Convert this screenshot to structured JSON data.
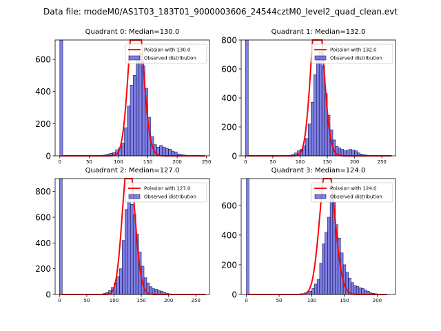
{
  "figure_title": "Data file: modeM0/AS1T03_183T01_9000003606_24544cztM0_level2_quad_clean.evt",
  "chart_data": [
    {
      "type": "bar",
      "title": "Quadrant 0: Median=130.0",
      "xlim": [
        -8,
        255
      ],
      "ylim": [
        0,
        720
      ],
      "xticks": [
        0,
        50,
        100,
        150,
        200,
        250
      ],
      "yticks": [
        0,
        200,
        400,
        600
      ],
      "bin_width": 5,
      "bins": [
        [
          0,
          720
        ],
        [
          70,
          4
        ],
        [
          75,
          6
        ],
        [
          80,
          12
        ],
        [
          85,
          16
        ],
        [
          90,
          20
        ],
        [
          95,
          38
        ],
        [
          100,
          50
        ],
        [
          105,
          80
        ],
        [
          110,
          175
        ],
        [
          115,
          310
        ],
        [
          120,
          440
        ],
        [
          125,
          500
        ],
        [
          130,
          590
        ],
        [
          135,
          640
        ],
        [
          140,
          560
        ],
        [
          145,
          420
        ],
        [
          150,
          240
        ],
        [
          155,
          120
        ],
        [
          160,
          70
        ],
        [
          165,
          55
        ],
        [
          170,
          65
        ],
        [
          175,
          55
        ],
        [
          180,
          45
        ],
        [
          185,
          42
        ],
        [
          190,
          30
        ],
        [
          195,
          25
        ],
        [
          200,
          12
        ],
        [
          205,
          8
        ],
        [
          210,
          5
        ],
        [
          215,
          3
        ]
      ],
      "fit": {
        "label": "Poission with 130.0",
        "mu": 130.0,
        "total": 5900,
        "x_range": [
          2,
          248
        ]
      },
      "legend": [
        "Poission with 130.0",
        "Observed distribution"
      ]
    },
    {
      "type": "bar",
      "title": "Quadrant 1: Median=132.0",
      "xlim": [
        -8,
        275
      ],
      "ylim": [
        0,
        800
      ],
      "xticks": [
        0,
        50,
        100,
        150,
        200,
        250
      ],
      "yticks": [
        0,
        200,
        400,
        600,
        800
      ],
      "bin_width": 5,
      "bins": [
        [
          0,
          800
        ],
        [
          80,
          5
        ],
        [
          85,
          10
        ],
        [
          90,
          20
        ],
        [
          95,
          35
        ],
        [
          100,
          45
        ],
        [
          105,
          70
        ],
        [
          110,
          120
        ],
        [
          115,
          220
        ],
        [
          120,
          370
        ],
        [
          125,
          560
        ],
        [
          130,
          680
        ],
        [
          135,
          720
        ],
        [
          140,
          620
        ],
        [
          145,
          430
        ],
        [
          150,
          280
        ],
        [
          155,
          180
        ],
        [
          160,
          110
        ],
        [
          165,
          65
        ],
        [
          170,
          55
        ],
        [
          175,
          45
        ],
        [
          180,
          35
        ],
        [
          185,
          40
        ],
        [
          190,
          45
        ],
        [
          195,
          40
        ],
        [
          200,
          35
        ],
        [
          205,
          20
        ],
        [
          210,
          12
        ],
        [
          215,
          8
        ],
        [
          220,
          5
        ],
        [
          225,
          3
        ]
      ],
      "fit": {
        "label": "Poission with 132.0",
        "mu": 132.0,
        "total": 6100,
        "x_range": [
          2,
          268
        ]
      },
      "legend": [
        "Poission with 132.0",
        "Observed distribution"
      ]
    },
    {
      "type": "bar",
      "title": "Quadrant 2: Median=127.0",
      "xlim": [
        -8,
        275
      ],
      "ylim": [
        0,
        900
      ],
      "xticks": [
        0,
        50,
        100,
        150,
        200,
        250
      ],
      "yticks": [
        0,
        200,
        400,
        600,
        800
      ],
      "bin_width": 5,
      "bins": [
        [
          0,
          900
        ],
        [
          75,
          4
        ],
        [
          80,
          8
        ],
        [
          85,
          15
        ],
        [
          90,
          30
        ],
        [
          95,
          55
        ],
        [
          100,
          90
        ],
        [
          105,
          140
        ],
        [
          110,
          200
        ],
        [
          115,
          420
        ],
        [
          120,
          660
        ],
        [
          125,
          740
        ],
        [
          130,
          700
        ],
        [
          135,
          620
        ],
        [
          140,
          470
        ],
        [
          145,
          330
        ],
        [
          150,
          220
        ],
        [
          155,
          130
        ],
        [
          160,
          90
        ],
        [
          165,
          60
        ],
        [
          170,
          45
        ],
        [
          175,
          40
        ],
        [
          180,
          30
        ],
        [
          185,
          25
        ],
        [
          190,
          15
        ],
        [
          195,
          8
        ],
        [
          200,
          5
        ],
        [
          205,
          3
        ]
      ],
      "fit": {
        "label": "Poission with 127.0",
        "mu": 127.0,
        "total": 6000,
        "x_range": [
          2,
          268
        ]
      },
      "legend": [
        "Poission with 127.0",
        "Observed distribution"
      ]
    },
    {
      "type": "bar",
      "title": "Quadrant 3: Median=124.0",
      "xlim": [
        -8,
        228
      ],
      "ylim": [
        0,
        780
      ],
      "xticks": [
        0,
        50,
        100,
        150,
        200
      ],
      "yticks": [
        0,
        200,
        400,
        600
      ],
      "bin_width": 4,
      "bins": [
        [
          0,
          780
        ],
        [
          80,
          4
        ],
        [
          84,
          6
        ],
        [
          88,
          10
        ],
        [
          92,
          14
        ],
        [
          96,
          22
        ],
        [
          100,
          40
        ],
        [
          104,
          70
        ],
        [
          108,
          100
        ],
        [
          112,
          210
        ],
        [
          116,
          340
        ],
        [
          120,
          420
        ],
        [
          124,
          520
        ],
        [
          128,
          640
        ],
        [
          132,
          620
        ],
        [
          136,
          470
        ],
        [
          140,
          380
        ],
        [
          144,
          280
        ],
        [
          148,
          200
        ],
        [
          152,
          150
        ],
        [
          156,
          110
        ],
        [
          160,
          80
        ],
        [
          164,
          60
        ],
        [
          168,
          55
        ],
        [
          172,
          45
        ],
        [
          176,
          40
        ],
        [
          180,
          30
        ],
        [
          184,
          22
        ],
        [
          188,
          12
        ],
        [
          192,
          8
        ],
        [
          196,
          5
        ],
        [
          200,
          3
        ]
      ],
      "fit": {
        "label": "Poission with 124.0",
        "mu": 124.0,
        "total": 6300,
        "x_range": [
          2,
          215
        ]
      },
      "legend": [
        "Poission with 124.0",
        "Observed distribution"
      ]
    }
  ]
}
